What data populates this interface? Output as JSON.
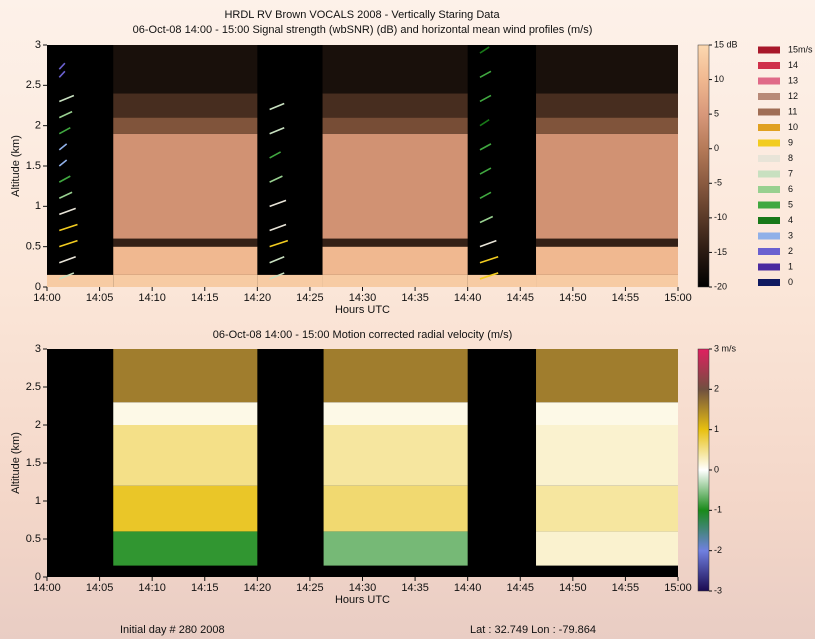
{
  "title": "HRDL RV Brown VOCALS 2008 - Vertically Staring Data",
  "chart_data": [
    {
      "type": "heatmap",
      "title": "06-Oct-08 14:00 - 15:00 Signal strength (wbSNR) (dB) and horizontal mean wind profiles (m/s)",
      "xlabel": "Hours UTC",
      "ylabel": "Altitude (km)",
      "xlim": [
        0,
        60
      ],
      "xticks": [
        {
          "value": 0,
          "label": "14:00"
        },
        {
          "value": 5,
          "label": "14:05"
        },
        {
          "value": 10,
          "label": "14:10"
        },
        {
          "value": 15,
          "label": "14:15"
        },
        {
          "value": 20,
          "label": "14:20"
        },
        {
          "value": 25,
          "label": "14:25"
        },
        {
          "value": 30,
          "label": "14:30"
        },
        {
          "value": 35,
          "label": "14:35"
        },
        {
          "value": 40,
          "label": "14:40"
        },
        {
          "value": 45,
          "label": "14:45"
        },
        {
          "value": 50,
          "label": "14:50"
        },
        {
          "value": 55,
          "label": "14:55"
        },
        {
          "value": 60,
          "label": "15:00"
        }
      ],
      "ylim": [
        0,
        3
      ],
      "yticks": [
        0,
        0.5,
        1,
        1.5,
        2,
        2.5,
        3
      ],
      "time_edges": [
        0,
        6.3,
        20,
        26.2,
        40,
        46.5,
        60
      ],
      "altitude_edges": [
        0,
        0.15,
        0.5,
        0.6,
        1.9,
        2.1,
        2.4,
        3
      ],
      "values": [
        [
          13,
          13,
          13,
          13,
          13,
          13
        ],
        [
          null,
          10,
          null,
          10,
          null,
          10
        ],
        [
          null,
          -14,
          null,
          -14,
          null,
          -14
        ],
        [
          null,
          4,
          null,
          4,
          null,
          4
        ],
        [
          null,
          -6,
          null,
          -7,
          null,
          -6
        ],
        [
          null,
          -12,
          null,
          -12,
          null,
          -12
        ],
        [
          null,
          -17,
          null,
          -17,
          null,
          -17
        ]
      ],
      "clim": [
        -20,
        15
      ],
      "cticks": [
        {
          "value": 15,
          "label": "15 dB"
        },
        10,
        5,
        0,
        -5,
        -10,
        -15,
        -20
      ],
      "colormap": [
        "#000000",
        "#2a1a12",
        "#5a3a28",
        "#8a5a40",
        "#b57a58",
        "#d8987a",
        "#f0b890",
        "#fcd8b0"
      ],
      "wind_legend": [
        {
          "value": 15,
          "label": "15m/s",
          "color": "#a8182a"
        },
        {
          "value": 14,
          "color": "#d0304a"
        },
        {
          "value": 13,
          "color": "#e06a88"
        },
        {
          "value": 12,
          "color": "#b88a78"
        },
        {
          "value": 11,
          "color": "#a06e55"
        },
        {
          "value": 10,
          "color": "#e0a020"
        },
        {
          "value": 9,
          "color": "#f2cc20"
        },
        {
          "value": 8,
          "color": "#e8e4d8"
        },
        {
          "value": 7,
          "color": "#c8e0c0"
        },
        {
          "value": 6,
          "color": "#98d090"
        },
        {
          "value": 5,
          "color": "#40a840"
        },
        {
          "value": 4,
          "color": "#187818"
        },
        {
          "value": 3,
          "color": "#90b0e8"
        },
        {
          "value": 2,
          "color": "#6a60d0"
        },
        {
          "value": 1,
          "color": "#4a2aa0"
        },
        {
          "value": 0,
          "color": "#101a60"
        }
      ],
      "wind_profiles": [
        {
          "time": 2.5,
          "altitudes": [
            0.1,
            0.3,
            0.5,
            0.7,
            0.9,
            1.1,
            1.3,
            1.5,
            1.7,
            1.9,
            2.1,
            2.3,
            2.6,
            2.7
          ],
          "speeds": [
            7,
            8,
            9,
            9,
            8,
            6,
            5,
            3,
            3,
            5,
            6,
            7,
            2,
            2
          ]
        },
        {
          "time": 22.5,
          "altitudes": [
            0.1,
            0.3,
            0.5,
            0.7,
            1.0,
            1.3,
            1.6,
            1.9,
            2.2
          ],
          "speeds": [
            7,
            7,
            9,
            8,
            8,
            6,
            5,
            7,
            7
          ]
        },
        {
          "time": 42.5,
          "altitudes": [
            0.1,
            0.3,
            0.5,
            0.8,
            1.1,
            1.4,
            1.7,
            2.0,
            2.3,
            2.6,
            2.9
          ],
          "speeds": [
            9,
            9,
            8,
            6,
            5,
            5,
            5,
            4,
            5,
            5,
            4
          ]
        }
      ]
    },
    {
      "type": "heatmap",
      "title": "06-Oct-08 14:00 - 15:00 Motion corrected radial velocity (m/s)",
      "xlabel": "Hours UTC",
      "ylabel": "Altitude (km)",
      "xlim": [
        0,
        60
      ],
      "xticks": [
        {
          "value": 0,
          "label": "14:00"
        },
        {
          "value": 5,
          "label": "14:05"
        },
        {
          "value": 10,
          "label": "14:10"
        },
        {
          "value": 15,
          "label": "14:15"
        },
        {
          "value": 20,
          "label": "14:20"
        },
        {
          "value": 25,
          "label": "14:25"
        },
        {
          "value": 30,
          "label": "14:30"
        },
        {
          "value": 35,
          "label": "14:35"
        },
        {
          "value": 40,
          "label": "14:40"
        },
        {
          "value": 45,
          "label": "14:45"
        },
        {
          "value": 50,
          "label": "14:50"
        },
        {
          "value": 55,
          "label": "14:55"
        },
        {
          "value": 60,
          "label": "15:00"
        }
      ],
      "ylim": [
        0,
        3
      ],
      "yticks": [
        0,
        0.5,
        1,
        1.5,
        2,
        2.5,
        3
      ],
      "time_edges": [
        0,
        6.3,
        20,
        26.3,
        40,
        46.5,
        60
      ],
      "altitude_edges": [
        0,
        0.15,
        0.6,
        1.2,
        2.0,
        2.3,
        3
      ],
      "values": [
        [
          null,
          null,
          null,
          null,
          null,
          null
        ],
        [
          null,
          -0.9,
          null,
          -0.6,
          null,
          0.2
        ],
        [
          null,
          0.9,
          null,
          0.6,
          null,
          0.4
        ],
        [
          null,
          0.5,
          null,
          0.4,
          null,
          0.2
        ],
        [
          null,
          0.1,
          null,
          0.1,
          null,
          0.1
        ],
        [
          null,
          1.6,
          null,
          1.6,
          null,
          1.6
        ]
      ],
      "clim": [
        -3,
        3
      ],
      "cticks": [
        {
          "value": 3,
          "label": "3 m/s"
        },
        2,
        1,
        0,
        -1,
        -2,
        -3
      ],
      "colormap": [
        "#1a0a50",
        "#7080e0",
        "#1a8a1a",
        "#ffffff",
        "#e8c010",
        "#705040",
        "#e02060"
      ]
    }
  ],
  "footer": {
    "left": "Initial day # 280  2008",
    "right": "Lat :  32.749  Lon :  -79.864"
  }
}
